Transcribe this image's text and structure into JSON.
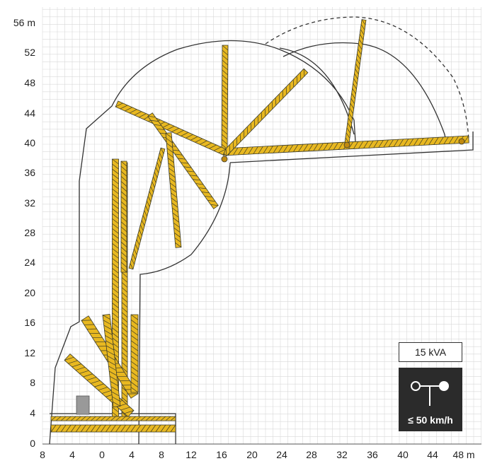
{
  "axes": {
    "x_ticks": [
      "8",
      "4",
      "0",
      "4",
      "8",
      "12",
      "16",
      "20",
      "24",
      "28",
      "32",
      "36",
      "40",
      "44",
      "48 m"
    ],
    "y_ticks": [
      "56 m",
      "52",
      "48",
      "44",
      "40",
      "36",
      "32",
      "28",
      "24",
      "20",
      "16",
      "12",
      "8",
      "4",
      "0"
    ]
  },
  "power_badge": {
    "label": "15 kVA"
  },
  "wind_badge": {
    "label": "≤ 50 km/h",
    "icon": "wind-anemometer-icon"
  },
  "colors": {
    "crane": "#e8b820",
    "crane_dark": "#3a3a2a",
    "envelope": "#333333",
    "grid": "#d9d9d9",
    "badge_bg": "#2b2b2b"
  }
}
